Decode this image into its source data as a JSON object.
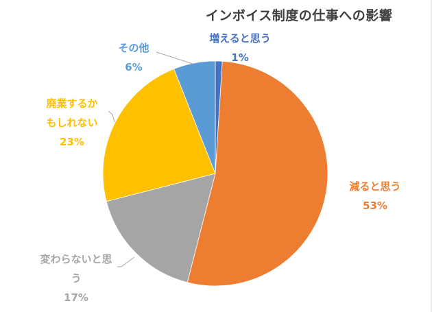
{
  "chart_data": {
    "type": "pie",
    "title": "インボイス制度の仕事への影響",
    "start_angle_deg": 0,
    "direction": "clockwise",
    "slices": [
      {
        "label": "増えると思う",
        "value": 1,
        "pct_label": "1%",
        "color": "#4472c4"
      },
      {
        "label": "減ると思う",
        "value": 53,
        "pct_label": "53%",
        "color": "#ed7d31"
      },
      {
        "label": "変わらないと思う",
        "value": 17,
        "pct_label": "17%",
        "color": "#a5a5a5"
      },
      {
        "label": "廃業するかもしれない",
        "value": 23,
        "pct_label": "23%",
        "color": "#ffc000"
      },
      {
        "label": "その他",
        "value": 6,
        "pct_label": "6%",
        "color": "#5b9bd5"
      }
    ],
    "legend": "none",
    "data_labels": "outside with leader lines"
  },
  "labels": {
    "increase": {
      "line1": "増えると思う",
      "pct": "1%",
      "color": "#4472c4"
    },
    "decrease": {
      "line1": "減ると思う",
      "pct": "53%",
      "color": "#ed7d31"
    },
    "nochange": {
      "line1": "変わらないと思",
      "line2": "う",
      "pct": "17%",
      "color": "#a5a5a5"
    },
    "closure": {
      "line1": "廃業するか",
      "line2": "もしれない",
      "pct": "23%",
      "color": "#ffc000"
    },
    "other": {
      "line1": "その他",
      "pct": "6%",
      "color": "#5b9bd5"
    }
  }
}
